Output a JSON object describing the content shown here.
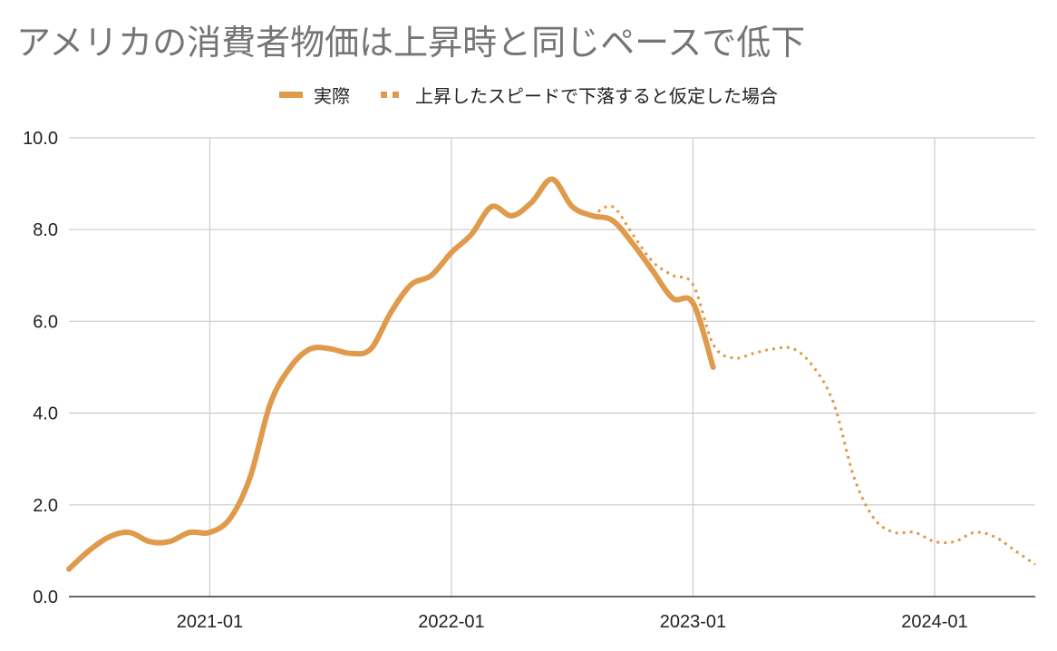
{
  "chart_data": {
    "type": "line",
    "title": "アメリカの消費者物価は上昇時と同じペースで低下",
    "xlabel": "",
    "ylabel": "",
    "x_tick_labels": [
      "2021-01",
      "2022-01",
      "2023-01",
      "2024-01"
    ],
    "y_tick_labels": [
      "0.0",
      "2.0",
      "4.0",
      "6.0",
      "8.0",
      "10.0"
    ],
    "ylim": [
      0,
      10
    ],
    "xlim": [
      "2020-06",
      "2024-06"
    ],
    "grid": true,
    "legend_position": "top-center",
    "colors": {
      "series": "#df9a4b",
      "grid": "#cccccc",
      "axis": "#333333",
      "title": "#757575"
    },
    "series": [
      {
        "name": "実際",
        "style": "solid",
        "x": [
          "2020-06",
          "2020-07",
          "2020-08",
          "2020-09",
          "2020-10",
          "2020-11",
          "2020-12",
          "2021-01",
          "2021-02",
          "2021-03",
          "2021-04",
          "2021-05",
          "2021-06",
          "2021-07",
          "2021-08",
          "2021-09",
          "2021-10",
          "2021-11",
          "2021-12",
          "2022-01",
          "2022-02",
          "2022-03",
          "2022-04",
          "2022-05",
          "2022-06",
          "2022-07",
          "2022-08",
          "2022-09",
          "2022-10",
          "2022-11",
          "2022-12",
          "2023-01",
          "2023-02"
        ],
        "values": [
          0.6,
          1.0,
          1.3,
          1.4,
          1.2,
          1.2,
          1.4,
          1.4,
          1.7,
          2.6,
          4.2,
          5.0,
          5.4,
          5.4,
          5.3,
          5.4,
          6.2,
          6.8,
          7.0,
          7.5,
          7.9,
          8.5,
          8.3,
          8.6,
          9.1,
          8.5,
          8.3,
          8.2,
          7.7,
          7.1,
          6.5,
          6.4,
          5.0
        ]
      },
      {
        "name": "上昇したスピードで下落すると仮定した場合",
        "style": "dotted",
        "x": [
          "2022-08",
          "2022-09",
          "2022-10",
          "2022-11",
          "2022-12",
          "2023-01",
          "2023-02",
          "2023-03",
          "2023-04",
          "2023-05",
          "2023-06",
          "2023-07",
          "2023-08",
          "2023-09",
          "2023-10",
          "2023-11",
          "2023-12",
          "2024-01",
          "2024-02",
          "2024-03",
          "2024-04",
          "2024-05",
          "2024-06"
        ],
        "values": [
          8.3,
          8.5,
          7.9,
          7.3,
          7.0,
          6.8,
          5.5,
          5.2,
          5.3,
          5.4,
          5.4,
          5.0,
          4.2,
          2.6,
          1.7,
          1.4,
          1.4,
          1.2,
          1.2,
          1.4,
          1.3,
          1.0,
          0.7
        ]
      }
    ]
  }
}
